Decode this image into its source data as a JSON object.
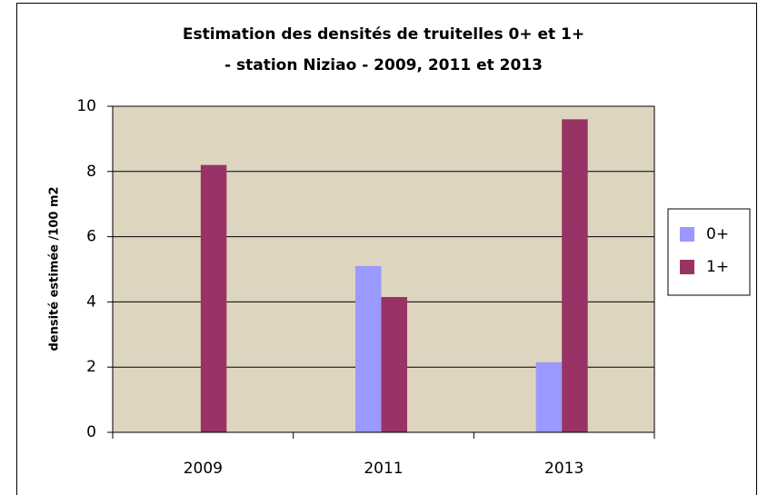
{
  "chart_data": {
    "type": "bar",
    "title": [
      "Estimation des densités de truitelles 0+ et 1+",
      "- station Niziao - 2009, 2011 et 2013"
    ],
    "y_label": "densité estimée /100 m2",
    "categories": [
      "2009",
      "2011",
      "2013"
    ],
    "series": [
      {
        "name": "0+",
        "color": "#9999ff",
        "values": [
          0,
          5.1,
          2.15
        ]
      },
      {
        "name": "1+",
        "color": "#993366",
        "values": [
          8.2,
          4.15,
          9.6
        ]
      }
    ],
    "ylim": [
      0,
      10
    ],
    "yticks": [
      0,
      2,
      4,
      6,
      8,
      10
    ],
    "grid": true,
    "legend": "right"
  }
}
